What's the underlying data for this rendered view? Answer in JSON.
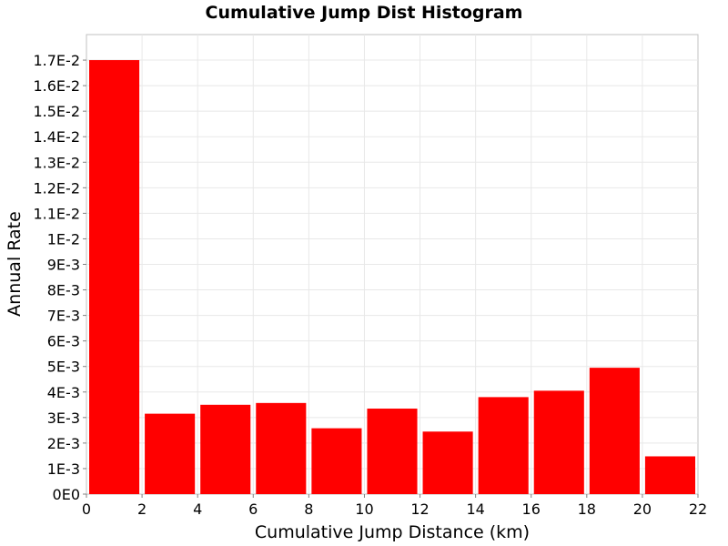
{
  "chart_data": {
    "type": "bar",
    "title": "Cumulative Jump Dist Histogram",
    "xlabel": "Cumulative Jump Distance (km)",
    "ylabel": "Annual Rate",
    "xlim": [
      0,
      22
    ],
    "ylim": [
      0,
      0.018
    ],
    "x_ticks": [
      "0",
      "2",
      "4",
      "6",
      "8",
      "10",
      "12",
      "14",
      "16",
      "18",
      "20",
      "22"
    ],
    "x_tick_values": [
      0,
      2,
      4,
      6,
      8,
      10,
      12,
      14,
      16,
      18,
      20,
      22
    ],
    "y_ticks": [
      "0E0",
      "1E-3",
      "2E-3",
      "3E-3",
      "4E-3",
      "5E-3",
      "6E-3",
      "7E-3",
      "8E-3",
      "9E-3",
      "1E-2",
      "1.1E-2",
      "1.2E-2",
      "1.3E-2",
      "1.4E-2",
      "1.5E-2",
      "1.6E-2",
      "1.7E-2"
    ],
    "y_tick_values": [
      0,
      0.001,
      0.002,
      0.003,
      0.004,
      0.005,
      0.006,
      0.007,
      0.008,
      0.009,
      0.01,
      0.011,
      0.012,
      0.013,
      0.014,
      0.015,
      0.016,
      0.017
    ],
    "grid": true,
    "bin_width": 2,
    "series": [
      {
        "bin_centers": [
          1,
          3,
          5,
          7,
          9,
          11,
          13,
          15,
          17,
          19,
          21
        ],
        "values": [
          0.017,
          0.00315,
          0.0035,
          0.00357,
          0.00258,
          0.00335,
          0.00245,
          0.0038,
          0.00405,
          0.00495,
          0.00148
        ]
      }
    ],
    "colors": {
      "bar": "#ff0000",
      "grid": "#e8e8e8",
      "plot_border": "#c0c0c0"
    }
  }
}
